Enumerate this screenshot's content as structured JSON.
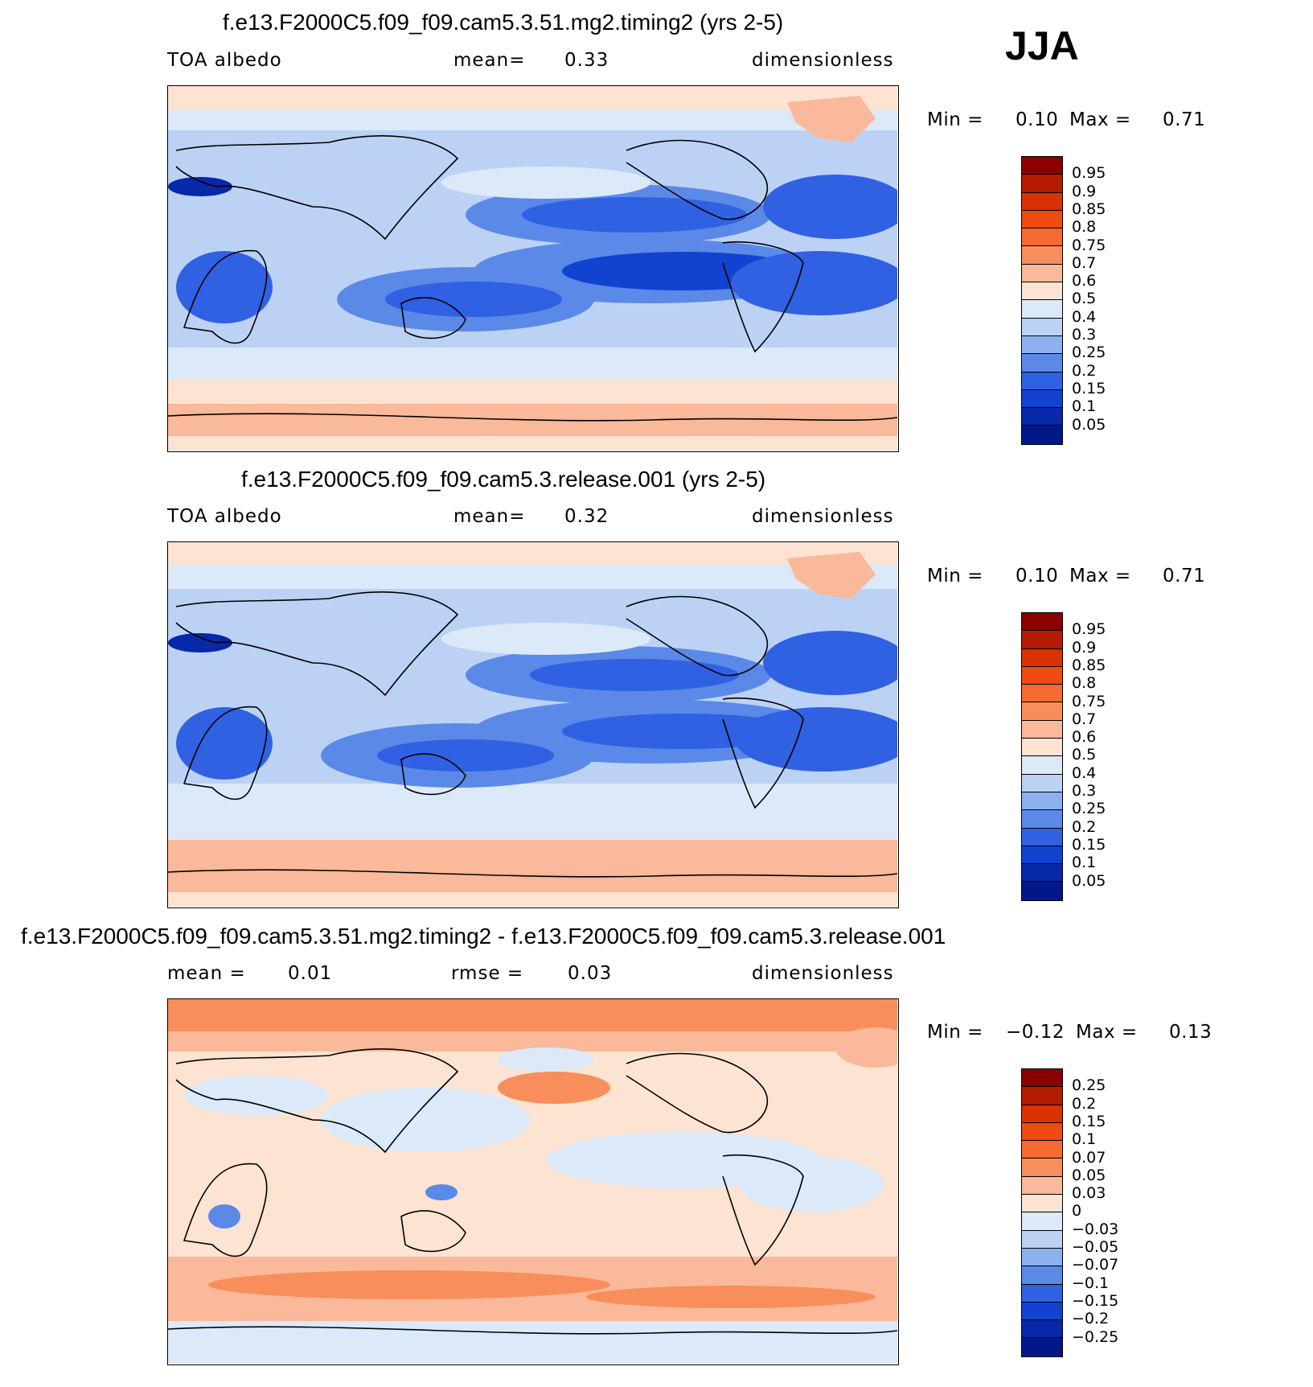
{
  "season": "JJA",
  "panels": [
    {
      "title": "f.e13.F2000C5.f09_f09.cam5.3.51.mg2.timing2 (yrs 2-5)",
      "left_label": "TOA albedo",
      "mid_label": "mean=",
      "mid_value": "0.33",
      "right_label": "dimensionless",
      "min_label": "Min =",
      "min_value": "0.10",
      "max_label": "Max =",
      "max_value": "0.71"
    },
    {
      "title": "f.e13.F2000C5.f09_f09.cam5.3.release.001 (yrs 2-5)",
      "left_label": "TOA albedo",
      "mid_label": "mean=",
      "mid_value": "0.32",
      "right_label": "dimensionless",
      "min_label": "Min =",
      "min_value": "0.10",
      "max_label": "Max =",
      "max_value": "0.71"
    },
    {
      "title": "f.e13.F2000C5.f09_f09.cam5.3.51.mg2.timing2 - f.e13.F2000C5.f09_f09.cam5.3.release.001",
      "left_label": "mean =",
      "left_value": "0.01",
      "mid_label": "rmse =",
      "mid_value": "0.03",
      "right_label": "dimensionless",
      "min_label": "Min =",
      "min_value": "−0.12",
      "max_label": "Max =",
      "max_value": "0.13"
    }
  ],
  "colorbars": {
    "absolute": {
      "labels": [
        "0.95",
        "0.9",
        "0.85",
        "0.8",
        "0.75",
        "0.7",
        "0.6",
        "0.5",
        "0.4",
        "0.3",
        "0.25",
        "0.2",
        "0.15",
        "0.1",
        "0.05"
      ],
      "colors": [
        "#8b0000",
        "#b31a00",
        "#d93200",
        "#f04a10",
        "#f56a30",
        "#f88e5c",
        "#fab99a",
        "#fde3d2",
        "#dce9f8",
        "#bcd2f5",
        "#8db1ef",
        "#5a89e8",
        "#2f61e2",
        "#1142d0",
        "#0728a8",
        "#001888"
      ]
    },
    "difference": {
      "labels": [
        "0.25",
        "0.2",
        "0.15",
        "0.1",
        "0.07",
        "0.05",
        "0.03",
        "0",
        "−0.03",
        "−0.05",
        "−0.07",
        "−0.1",
        "−0.15",
        "−0.2",
        "−0.25"
      ],
      "colors": [
        "#8b0000",
        "#b31a00",
        "#d93200",
        "#f04a10",
        "#f56a30",
        "#f88e5c",
        "#fab99a",
        "#fde3d2",
        "#dce9f8",
        "#bcd2f5",
        "#8db1ef",
        "#5a89e8",
        "#2f61e2",
        "#1142d0",
        "#0728a8",
        "#001888"
      ]
    }
  }
}
